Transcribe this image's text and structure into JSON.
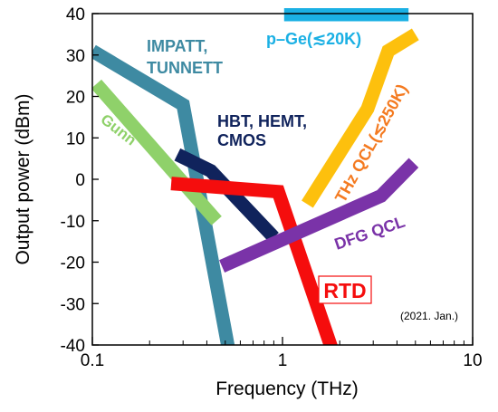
{
  "chart_data": {
    "type": "line",
    "xlabel": "Frequency (THz)",
    "ylabel": "Output power (dBm)",
    "xscale": "log",
    "xlim": [
      0.1,
      10
    ],
    "ylim": [
      -40,
      40
    ],
    "x_ticks": [
      "0.1",
      "1",
      "10"
    ],
    "y_ticks": [
      "40",
      "30",
      "20",
      "10",
      "0",
      "-10",
      "-20",
      "-30",
      "-40"
    ],
    "annotation": "(2021. Jan.)",
    "series": [
      {
        "name": "IMPATT, TUNNETT",
        "color": "#3e8aa2",
        "points": [
          [
            0.1,
            31
          ],
          [
            0.3,
            18
          ],
          [
            0.52,
            -41
          ]
        ]
      },
      {
        "name": "Gunn",
        "color": "#8fd16a",
        "points": [
          [
            0.105,
            23
          ],
          [
            0.45,
            -10
          ]
        ]
      },
      {
        "name": "HBT, HEMT, CMOS",
        "color": "#10235c",
        "points": [
          [
            0.28,
            6
          ],
          [
            0.42,
            2
          ],
          [
            0.9,
            -14
          ]
        ]
      },
      {
        "name": "RTD",
        "color": "#f50d0d",
        "points": [
          [
            0.26,
            -1
          ],
          [
            0.95,
            -3
          ],
          [
            1.85,
            -42
          ]
        ]
      },
      {
        "name": "DFG QCL",
        "color": "#7a33a8",
        "points": [
          [
            0.48,
            -21
          ],
          [
            3.3,
            -4
          ],
          [
            4.9,
            4
          ]
        ]
      },
      {
        "name": "THz QCL(≲250K)",
        "color": "#fdc00d",
        "points": [
          [
            1.35,
            -6
          ],
          [
            2.8,
            17
          ],
          [
            3.6,
            31
          ],
          [
            5.0,
            35
          ]
        ]
      },
      {
        "name": "p–Ge(≲20K)",
        "color": "#1bb0e4",
        "points": [
          [
            1.02,
            40
          ],
          [
            4.6,
            40
          ]
        ]
      }
    ]
  }
}
